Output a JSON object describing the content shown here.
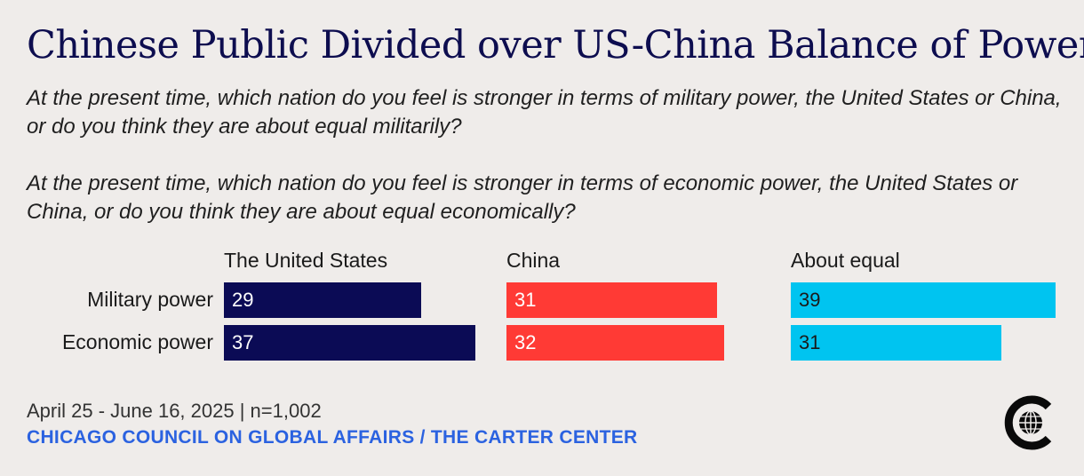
{
  "title": "Chinese Public Divided over US-China Balance of Power",
  "questions": [
    "At the present time, which nation do you feel is stronger in terms of military power, the United States or China, or do you think they are about equal militarily?",
    "At the present time, which nation do you feel is stronger in terms of economic power, the United States or China, or do you think they are about equal economically?"
  ],
  "footer": {
    "date": "April 25 - June 16, 2025 | n=1,002",
    "source": "CHICAGO COUNCIL ON GLOBAL AFFAIRS / THE CARTER CENTER"
  },
  "chart_data": {
    "type": "bar",
    "orientation": "horizontal",
    "layout": "small-multiples",
    "categories": [
      "Military power",
      "Economic power"
    ],
    "series": [
      {
        "name": "The United States",
        "values": [
          29,
          37
        ],
        "color": "#0b0b55"
      },
      {
        "name": "China",
        "values": [
          31,
          32
        ],
        "color": "#ff3a35"
      },
      {
        "name": "About equal",
        "values": [
          39,
          31
        ],
        "color": "#00c4f0"
      }
    ],
    "xlim": [
      0,
      40
    ],
    "label_colors": [
      "#ffffff",
      "#ffffff",
      "#1a1a1a"
    ],
    "grid": false
  }
}
